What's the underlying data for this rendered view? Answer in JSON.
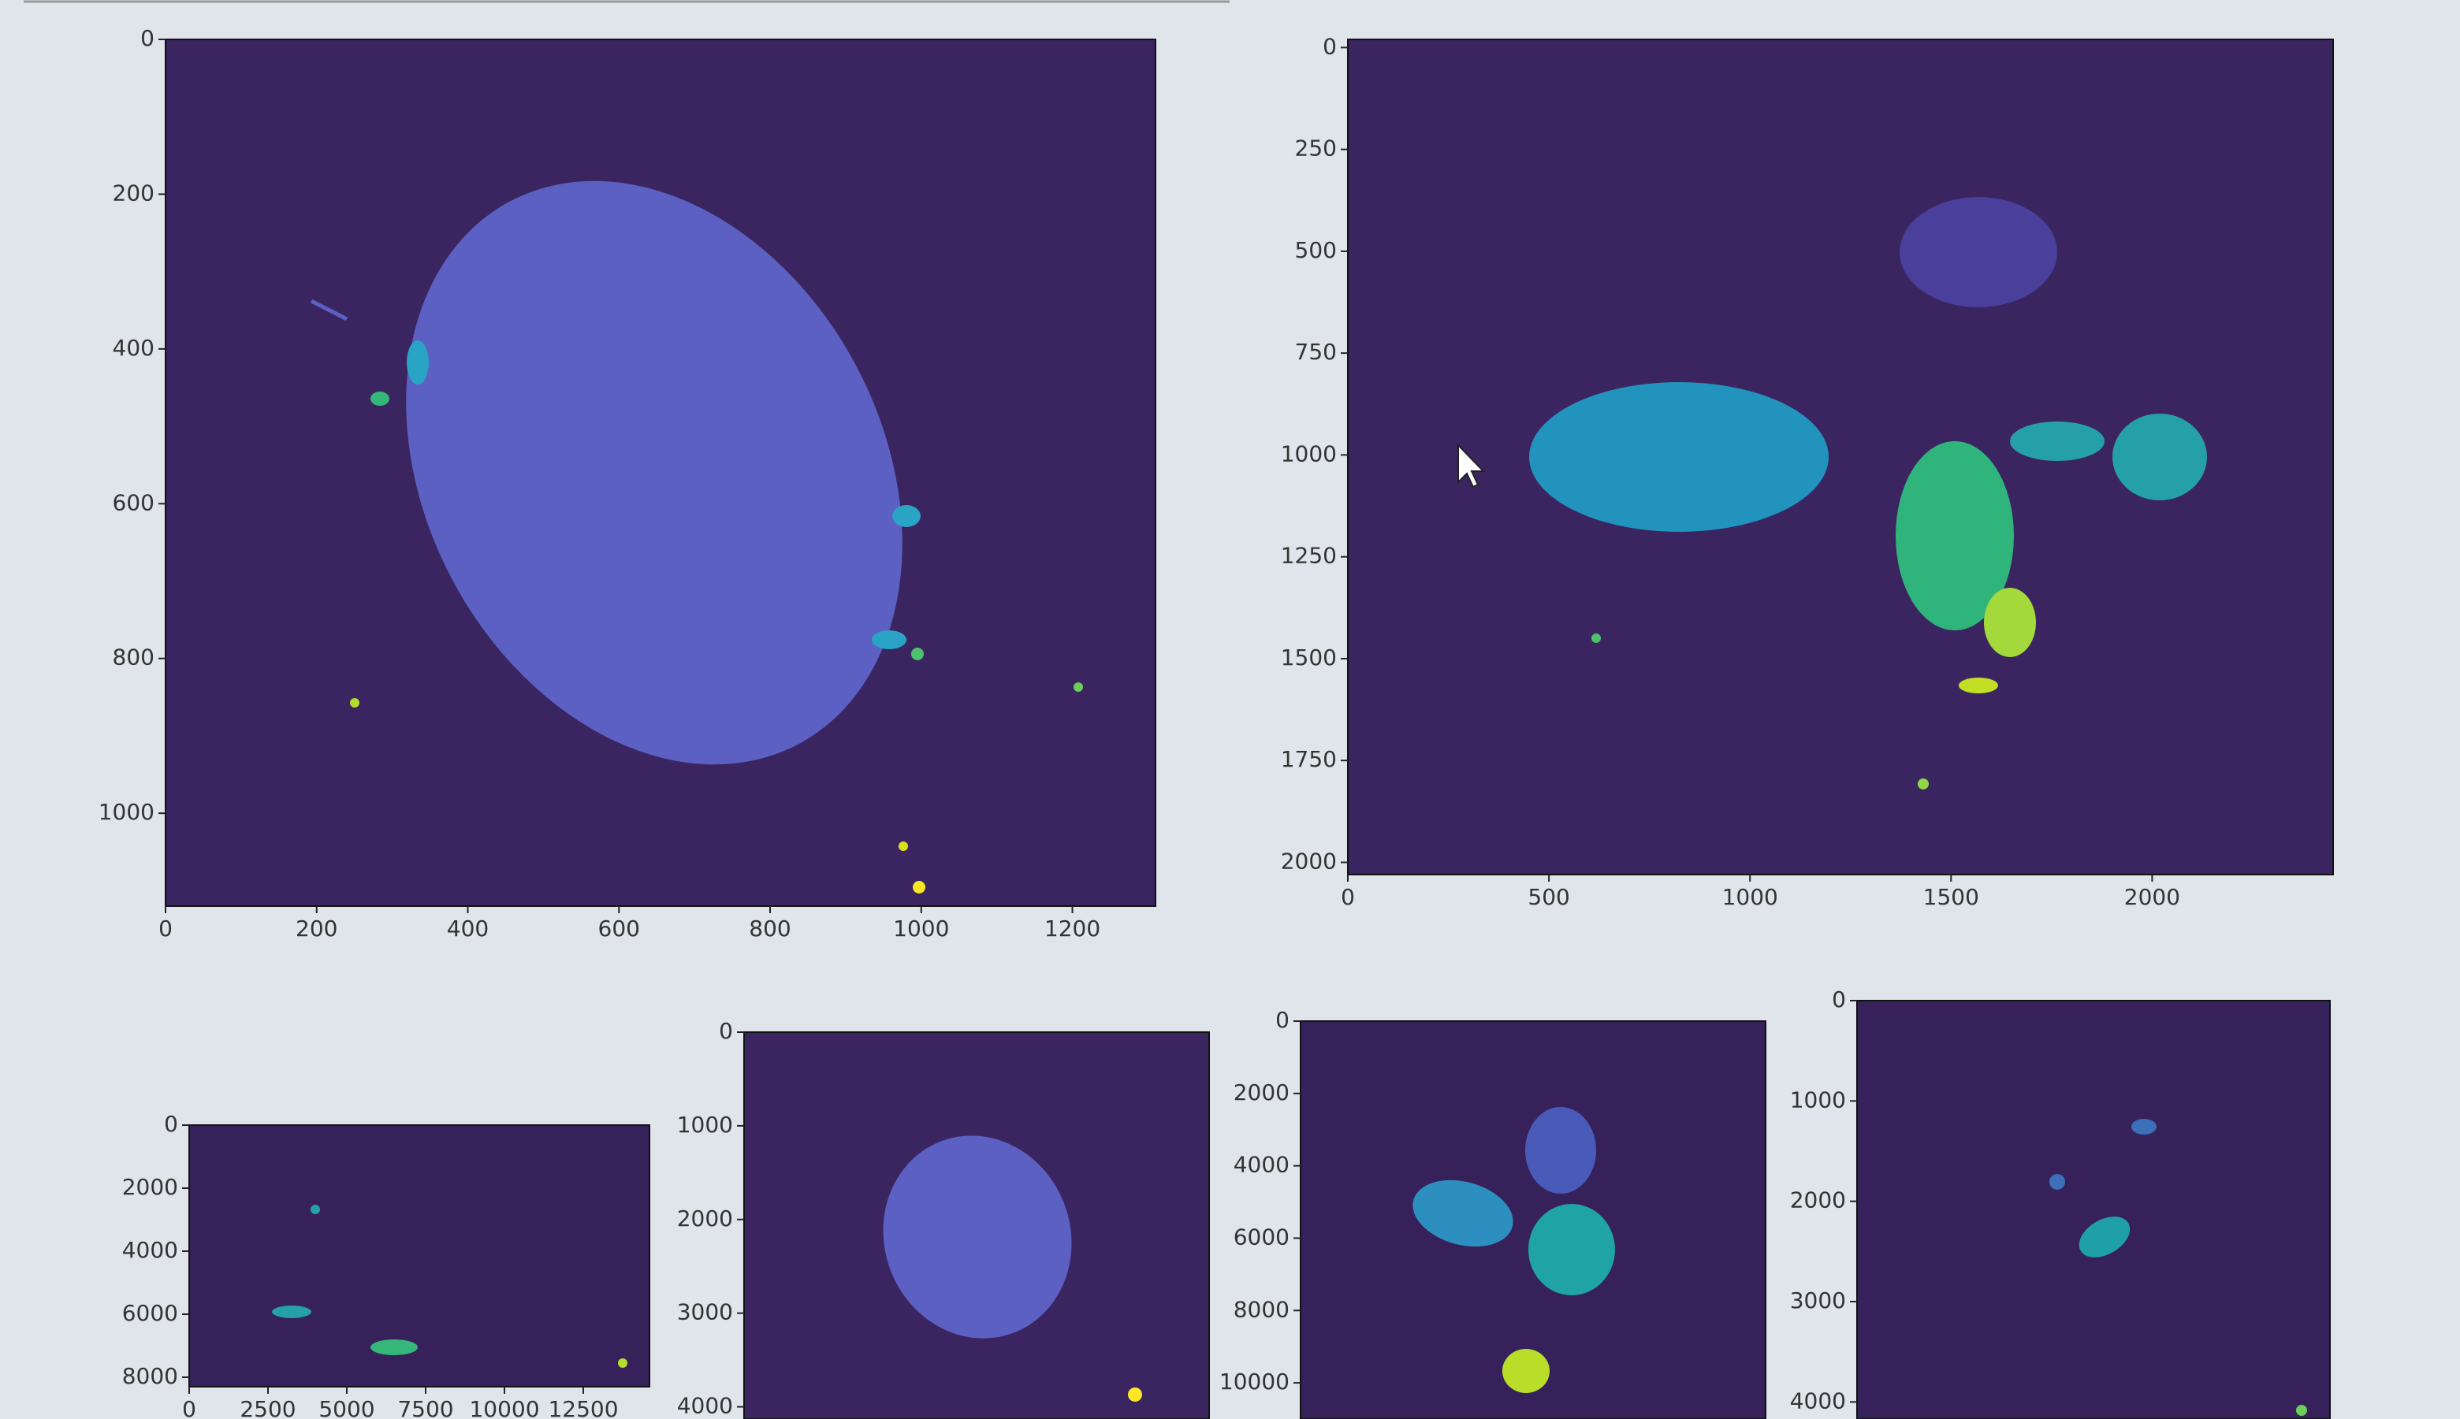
{
  "chart_data": [
    {
      "type": "image",
      "color": "#3b2561",
      "xlim": [
        0,
        1310
      ],
      "ylim": [
        1120,
        0
      ],
      "xticks": [
        0,
        200,
        400,
        600,
        800,
        1000,
        1200
      ],
      "yticks": [
        0,
        200,
        400,
        600,
        800,
        1000
      ]
    },
    {
      "type": "image",
      "color": "#3b2561",
      "xlim": [
        0,
        2450
      ],
      "ylim": [
        2030,
        -20
      ],
      "xticks": [
        0,
        500,
        1000,
        1500,
        2000
      ],
      "yticks": [
        0,
        250,
        500,
        750,
        1000,
        1250,
        1500,
        1750,
        2000
      ]
    },
    {
      "type": "image",
      "color": "#36215a",
      "xlim": [
        0,
        14600
      ],
      "ylim": [
        8300,
        0
      ],
      "xticks": [
        0,
        2500,
        5000,
        7500,
        10000,
        12500
      ],
      "yticks": [
        0,
        2000,
        4000,
        6000,
        8000
      ]
    },
    {
      "type": "image",
      "color": "#3b2561",
      "ylim": [
        4130,
        0
      ],
      "yticks": [
        0,
        1000,
        2000,
        3000,
        4000
      ]
    },
    {
      "type": "image",
      "color": "#36215a",
      "ylim": [
        11000,
        0
      ],
      "yticks": [
        0,
        2000,
        4000,
        6000,
        8000,
        10000
      ]
    },
    {
      "type": "image",
      "color": "#36215a",
      "ylim": [
        4170,
        0
      ],
      "yticks": [
        0,
        1000,
        2000,
        3000,
        4000
      ]
    }
  ]
}
